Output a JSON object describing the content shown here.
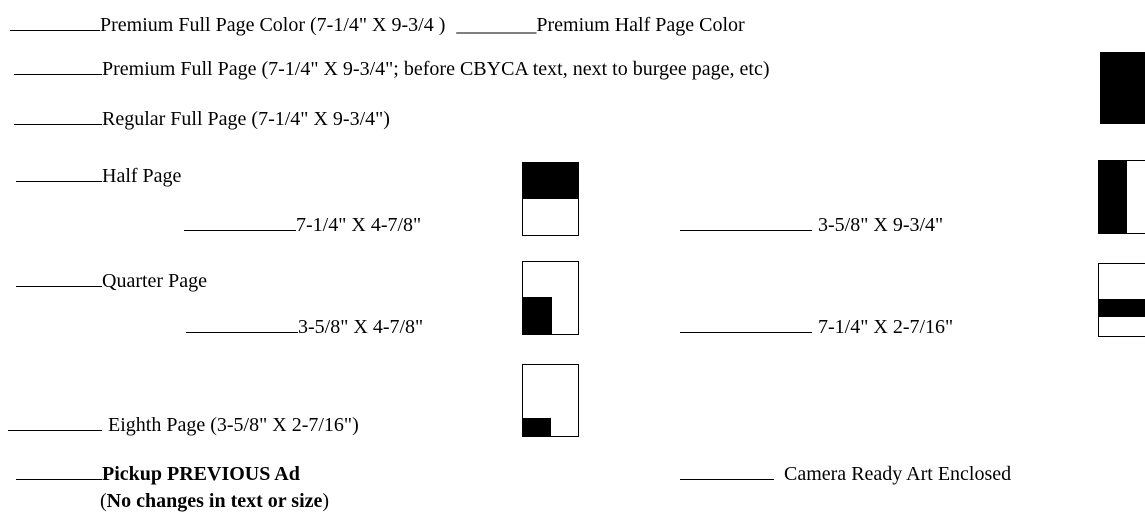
{
  "options": {
    "premium_full_color": "Premium Full Page Color (7-1/4\" X 9-3/4 )",
    "premium_half_color_blank": "________",
    "premium_half_color": "Premium Half Page Color",
    "premium_full": "Premium Full Page (7-1/4\" X 9-3/4\"; before CBYCA text, next to burgee page, etc)",
    "regular_full": "Regular Full Page (7-1/4\" X 9-3/4\")",
    "half_page": "Half Page",
    "half_horizontal": "7-1/4\" X 4-7/8\"",
    "half_vertical": "3-5/8\" X 9-3/4\"",
    "quarter_page": "Quarter Page",
    "quarter_vertical": "3-5/8\" X 4-7/8\"",
    "quarter_horizontal": "7-1/4\" X 2-7/16\"",
    "eighth_page": "Eighth Page (3-5/8\" X 2-7/16\")",
    "pickup_previous": "Pickup PREVIOUS Ad",
    "no_changes_open": "(",
    "no_changes_bold": "No changes in text or size",
    "no_changes_close": ")",
    "camera_ready": "Camera Ready Art Enclosed"
  }
}
